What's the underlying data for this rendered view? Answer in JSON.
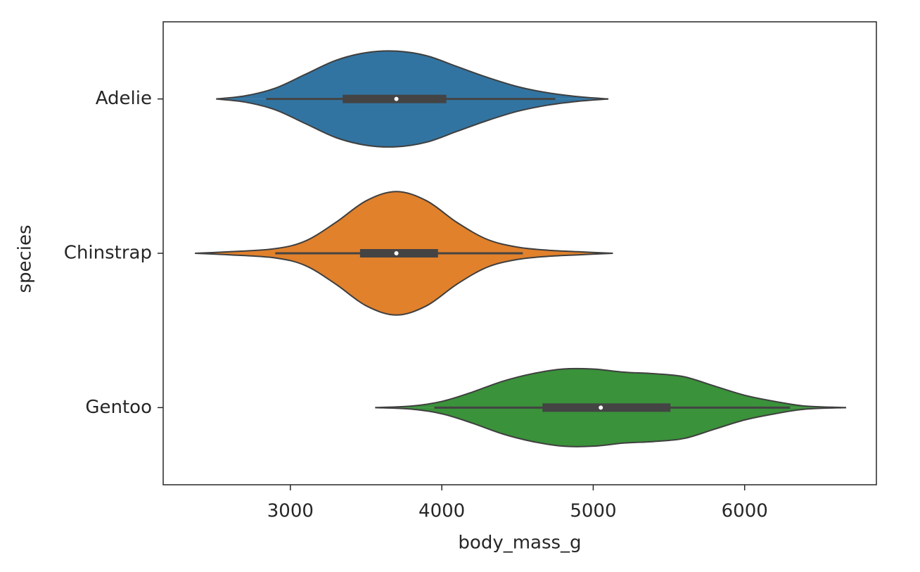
{
  "chart_data": {
    "type": "violin",
    "orientation": "horizontal",
    "x_label": "body_mass_g",
    "y_label": "species",
    "categories": [
      "Adelie",
      "Chinstrap",
      "Gentoo"
    ],
    "xlim": [
      2160,
      6870
    ],
    "xticks": [
      3000,
      4000,
      5000,
      6000
    ],
    "grid": false,
    "box_color": "#444444",
    "series": [
      {
        "color": "#3274a1",
        "whisker_low": 2840,
        "q1": 3345,
        "median": 3700,
        "q3": 4030,
        "whisker_high": 4750,
        "density_x": [
          2510,
          2700,
          2900,
          3100,
          3300,
          3500,
          3700,
          3900,
          4100,
          4300,
          4500,
          4700,
          4900,
          5100
        ],
        "density": [
          0,
          0.02,
          0.07,
          0.16,
          0.25,
          0.3,
          0.31,
          0.28,
          0.21,
          0.14,
          0.08,
          0.04,
          0.015,
          0
        ]
      },
      {
        "color": "#e1812c",
        "whisker_low": 2900,
        "q1": 3460,
        "median": 3700,
        "q3": 3975,
        "whisker_high": 4535,
        "density_x": [
          2370,
          2600,
          2900,
          3100,
          3300,
          3500,
          3700,
          3900,
          4100,
          4300,
          4500,
          4700,
          4900,
          5130
        ],
        "density": [
          0,
          0.01,
          0.03,
          0.08,
          0.2,
          0.34,
          0.4,
          0.34,
          0.2,
          0.09,
          0.04,
          0.02,
          0.01,
          0
        ]
      },
      {
        "color": "#3a923a",
        "whisker_low": 3950,
        "q1": 4665,
        "median": 5050,
        "q3": 5510,
        "whisker_high": 6300,
        "density_x": [
          3560,
          3800,
          4000,
          4200,
          4400,
          4600,
          4800,
          5000,
          5200,
          5400,
          5600,
          5800,
          6000,
          6200,
          6400,
          6670
        ],
        "density": [
          0,
          0.01,
          0.04,
          0.1,
          0.17,
          0.22,
          0.25,
          0.25,
          0.23,
          0.22,
          0.2,
          0.14,
          0.08,
          0.04,
          0.01,
          0
        ]
      }
    ]
  }
}
